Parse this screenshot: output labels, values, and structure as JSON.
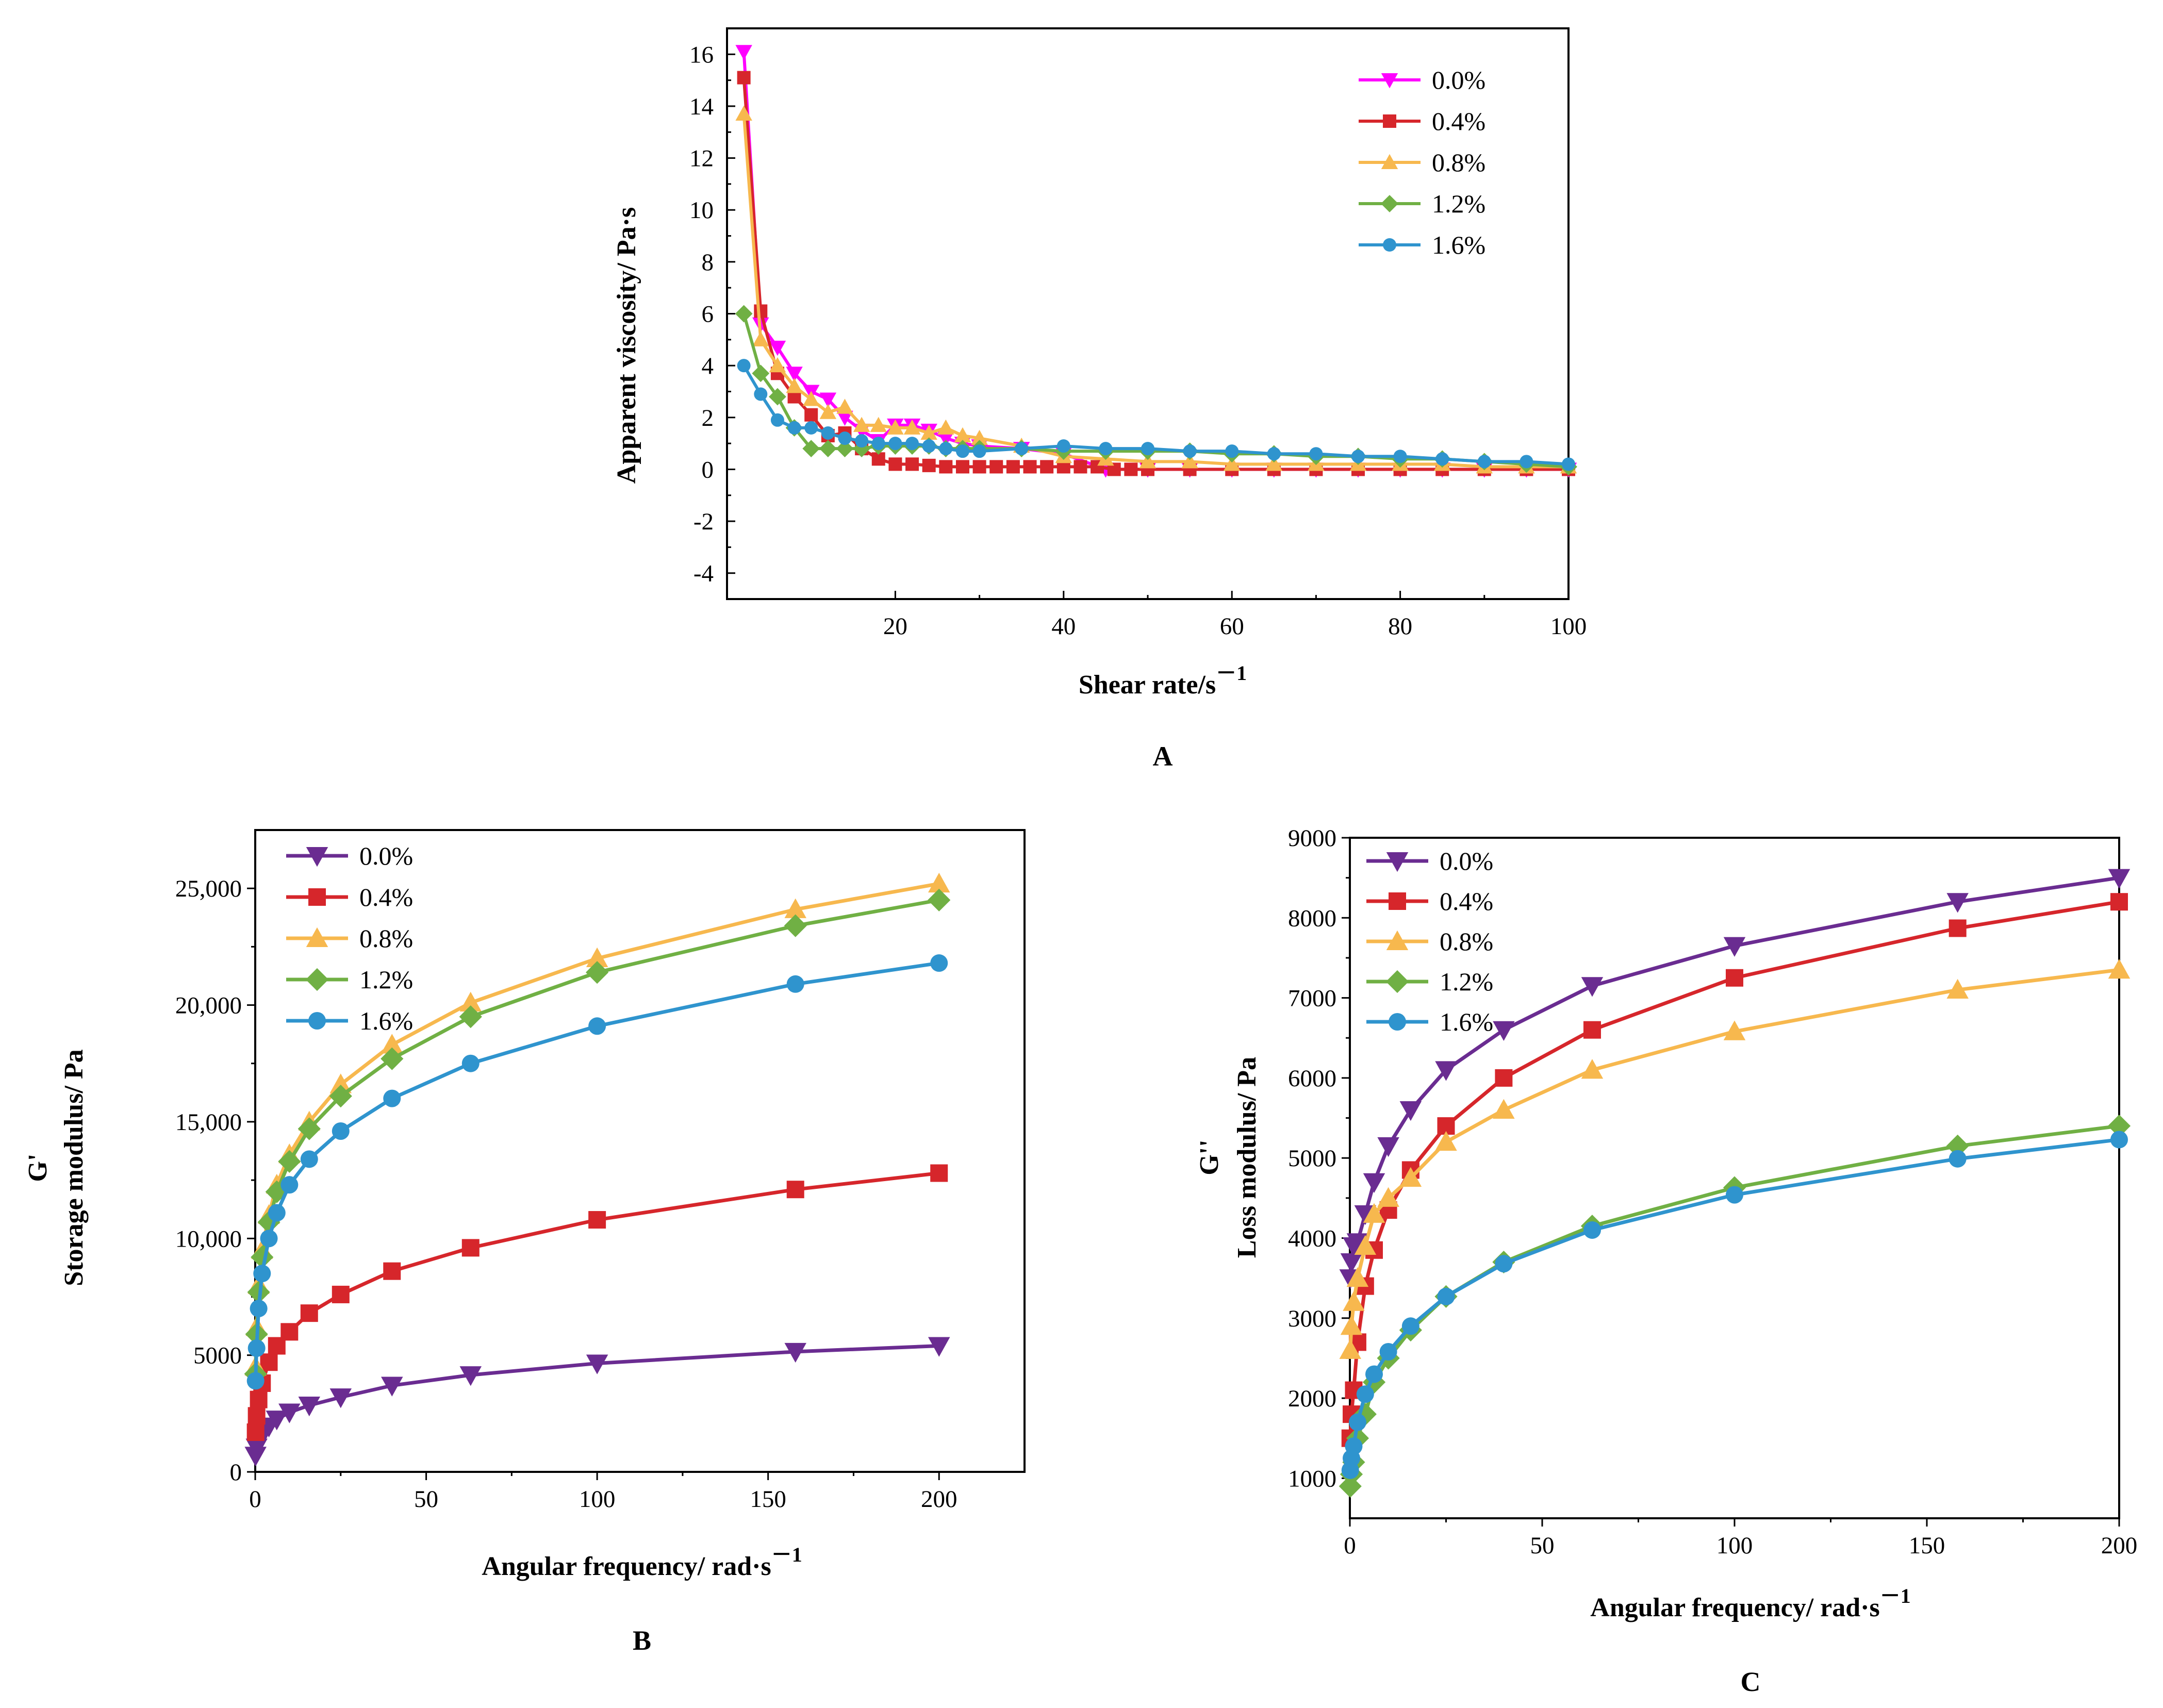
{
  "colors": {
    "chartA": [
      "#ff00ff",
      "#d6262b",
      "#f7b84e",
      "#70b044",
      "#2f94ce"
    ],
    "chartBC": [
      "#6a2c91",
      "#d6262b",
      "#f7b84e",
      "#70b044",
      "#2f94ce"
    ]
  },
  "chart_data": [
    {
      "type": "line",
      "panel_label": "A",
      "xlabel": "Shear rate/s",
      "xlabel_sup": "－1",
      "ylabel": "Apparent viscosity/ Pa·s",
      "xlim": [
        0,
        100
      ],
      "ylim": [
        -5,
        17
      ],
      "xticks": [
        20,
        40,
        60,
        80,
        100
      ],
      "yticks": [
        -4,
        -2,
        0,
        2,
        4,
        6,
        8,
        10,
        12,
        14,
        16
      ],
      "xtick_labels": [
        "20",
        "40",
        "60",
        "80",
        "100"
      ],
      "ytick_labels": [
        "-4",
        "-2",
        "0",
        "2",
        "4",
        "6",
        "8",
        "10",
        "12",
        "14",
        "16"
      ],
      "legend": [
        "0.0%",
        "0.4%",
        "0.8%",
        "1.2%",
        "1.6%"
      ],
      "legend_position": "top-right",
      "markers": [
        "triangle-down",
        "square",
        "triangle-up",
        "diamond",
        "circle"
      ],
      "series": [
        {
          "name": "0.0%",
          "x": [
            2,
            4,
            6,
            8,
            10,
            12,
            14,
            16,
            18,
            20,
            22,
            24,
            26,
            28,
            30,
            35,
            40,
            45,
            50,
            55,
            60,
            65,
            70,
            75,
            80,
            85,
            90,
            95,
            100
          ],
          "y": [
            16.1,
            5.6,
            4.7,
            3.7,
            3.0,
            2.7,
            2.0,
            1.5,
            1.1,
            1.7,
            1.7,
            1.5,
            1.2,
            1.0,
            0.9,
            0.8,
            0.6,
            0.0,
            0.0,
            0.0,
            0.0,
            0.0,
            0.0,
            0.0,
            0.0,
            0.0,
            0.0,
            0.0,
            0.0
          ]
        },
        {
          "name": "0.4%",
          "x": [
            2,
            4,
            6,
            8,
            10,
            12,
            14,
            16,
            18,
            20,
            22,
            24,
            26,
            28,
            30,
            32,
            34,
            36,
            38,
            40,
            42,
            44,
            46,
            48,
            50,
            55,
            60,
            65,
            70,
            75,
            80,
            85,
            90,
            95,
            100
          ],
          "y": [
            15.1,
            6.1,
            3.7,
            2.8,
            2.1,
            1.3,
            1.4,
            0.8,
            0.4,
            0.2,
            0.2,
            0.15,
            0.1,
            0.1,
            0.1,
            0.1,
            0.1,
            0.1,
            0.1,
            0.1,
            0.1,
            0.1,
            0.0,
            0.0,
            0.0,
            0.0,
            0.0,
            0.0,
            0.0,
            0.0,
            0.0,
            0.0,
            0.0,
            0.0,
            0.0
          ]
        },
        {
          "name": "0.8%",
          "x": [
            2,
            4,
            6,
            8,
            10,
            12,
            14,
            16,
            18,
            20,
            22,
            24,
            26,
            28,
            30,
            35,
            40,
            45,
            50,
            55,
            60,
            65,
            70,
            75,
            80,
            85,
            90,
            95,
            100
          ],
          "y": [
            13.7,
            5.0,
            4.0,
            3.2,
            2.7,
            2.2,
            2.4,
            1.7,
            1.7,
            1.6,
            1.6,
            1.4,
            1.6,
            1.3,
            1.2,
            0.9,
            0.5,
            0.4,
            0.3,
            0.3,
            0.2,
            0.2,
            0.2,
            0.2,
            0.2,
            0.2,
            0.1,
            0.1,
            0.1
          ]
        },
        {
          "name": "1.2%",
          "x": [
            2,
            4,
            6,
            8,
            10,
            12,
            14,
            16,
            18,
            20,
            22,
            24,
            26,
            28,
            30,
            35,
            40,
            45,
            50,
            55,
            60,
            65,
            70,
            75,
            80,
            85,
            90,
            95,
            100
          ],
          "y": [
            6.0,
            3.7,
            2.8,
            1.6,
            0.8,
            0.8,
            0.8,
            0.8,
            0.9,
            0.9,
            0.9,
            0.9,
            0.8,
            0.8,
            0.8,
            0.8,
            0.7,
            0.7,
            0.7,
            0.7,
            0.6,
            0.6,
            0.5,
            0.5,
            0.4,
            0.4,
            0.3,
            0.2,
            0.1
          ]
        },
        {
          "name": "1.6%",
          "x": [
            2,
            4,
            6,
            8,
            10,
            12,
            14,
            16,
            18,
            20,
            22,
            24,
            26,
            28,
            30,
            35,
            40,
            45,
            50,
            55,
            60,
            65,
            70,
            75,
            80,
            85,
            90,
            95,
            100
          ],
          "y": [
            4.0,
            2.9,
            1.9,
            1.6,
            1.6,
            1.4,
            1.2,
            1.1,
            1.0,
            1.0,
            1.0,
            0.9,
            0.8,
            0.7,
            0.7,
            0.8,
            0.9,
            0.8,
            0.8,
            0.7,
            0.7,
            0.6,
            0.6,
            0.5,
            0.5,
            0.4,
            0.3,
            0.3,
            0.2
          ]
        }
      ]
    },
    {
      "type": "line",
      "panel_label": "B",
      "xlabel": "Angular frequency/ rad·s",
      "xlabel_sup": "－1",
      "ylabel": "Storage modulus/ Pa",
      "ylabel_symbol": "G'",
      "xlim": [
        0,
        225
      ],
      "ylim": [
        0,
        27500
      ],
      "xticks": [
        0,
        50,
        100,
        150,
        200
      ],
      "yticks": [
        0,
        5000,
        10000,
        15000,
        20000,
        25000
      ],
      "xtick_labels": [
        "0",
        "50",
        "100",
        "150",
        "200"
      ],
      "ytick_labels": [
        "0",
        "5000",
        "10,000",
        "15,000",
        "20,000",
        "25,000"
      ],
      "legend": [
        "0.0%",
        "0.4%",
        "0.8%",
        "1.2%",
        "1.6%"
      ],
      "legend_position": "top-left",
      "markers": [
        "triangle-down",
        "square",
        "triangle-up",
        "diamond",
        "circle"
      ],
      "series": [
        {
          "name": "0.0%",
          "x": [
            0.1,
            0.4,
            1,
            2,
            4,
            6.3,
            10,
            15.8,
            25,
            40,
            63,
            100,
            158,
            200
          ],
          "y": [
            700,
            1050,
            1300,
            1650,
            1950,
            2250,
            2550,
            2850,
            3200,
            3700,
            4150,
            4650,
            5150,
            5400
          ]
        },
        {
          "name": "0.4%",
          "x": [
            0.1,
            0.4,
            1,
            2,
            4,
            6.3,
            10,
            15.8,
            25,
            40,
            63,
            100,
            158,
            200
          ],
          "y": [
            1700,
            2400,
            3100,
            3800,
            4700,
            5400,
            6000,
            6800,
            7600,
            8600,
            9600,
            10800,
            12100,
            12800
          ]
        },
        {
          "name": "0.8%",
          "x": [
            0.1,
            0.4,
            1,
            2,
            4,
            6.3,
            10,
            15.8,
            25,
            40,
            63,
            100,
            158,
            200
          ],
          "y": [
            4500,
            6200,
            8000,
            9500,
            11000,
            12300,
            13600,
            15000,
            16600,
            18300,
            20100,
            22000,
            24100,
            25200
          ]
        },
        {
          "name": "1.2%",
          "x": [
            0.1,
            0.4,
            1,
            2,
            4,
            6.3,
            10,
            15.8,
            25,
            40,
            63,
            100,
            158,
            200
          ],
          "y": [
            4200,
            5900,
            7700,
            9200,
            10700,
            12000,
            13300,
            14700,
            16100,
            17700,
            19500,
            21400,
            23400,
            24500
          ]
        },
        {
          "name": "1.6%",
          "x": [
            0.1,
            0.4,
            1,
            2,
            4,
            6.3,
            10,
            15.8,
            25,
            40,
            63,
            100,
            158,
            200
          ],
          "y": [
            3900,
            5300,
            7000,
            8500,
            10000,
            11100,
            12300,
            13400,
            14600,
            16000,
            17500,
            19100,
            20900,
            21800
          ]
        }
      ]
    },
    {
      "type": "line",
      "panel_label": "C",
      "xlabel": "Angular frequency/ rad·s",
      "xlabel_sup": "－1",
      "ylabel": "Loss modulus/ Pa",
      "ylabel_symbol": "G''",
      "xlim": [
        0,
        200
      ],
      "ylim": [
        500,
        9000
      ],
      "xticks": [
        0,
        50,
        100,
        150,
        200
      ],
      "yticks": [
        1000,
        2000,
        3000,
        4000,
        5000,
        6000,
        7000,
        8000,
        9000
      ],
      "xtick_labels": [
        "0",
        "50",
        "100",
        "150",
        "200"
      ],
      "ytick_labels": [
        "1000",
        "2000",
        "3000",
        "4000",
        "5000",
        "6000",
        "7000",
        "8000",
        "9000"
      ],
      "legend": [
        "0.0%",
        "0.4%",
        "0.8%",
        "1.2%",
        "1.6%"
      ],
      "legend_position": "top-left",
      "markers": [
        "triangle-down",
        "square",
        "triangle-up",
        "diamond",
        "circle"
      ],
      "series": [
        {
          "name": "0.0%",
          "x": [
            0.1,
            0.4,
            1,
            2,
            4,
            6.3,
            10,
            15.8,
            25,
            40,
            63,
            100,
            158,
            200
          ],
          "y": [
            3500,
            3700,
            3900,
            3950,
            4300,
            4700,
            5150,
            5600,
            6100,
            6600,
            7150,
            7650,
            8200,
            8500
          ]
        },
        {
          "name": "0.4%",
          "x": [
            0.1,
            0.4,
            1,
            2,
            4,
            6.3,
            10,
            15.8,
            25,
            40,
            63,
            100,
            158,
            200
          ],
          "y": [
            1500,
            1800,
            2100,
            2700,
            3400,
            3850,
            4350,
            4850,
            5400,
            6000,
            6600,
            7250,
            7870,
            8200
          ]
        },
        {
          "name": "0.8%",
          "x": [
            0.1,
            0.4,
            1,
            2,
            4,
            6.3,
            10,
            15.8,
            25,
            40,
            63,
            100,
            158,
            200
          ],
          "y": [
            2600,
            2900,
            3200,
            3500,
            3900,
            4300,
            4500,
            4750,
            5200,
            5600,
            6100,
            6580,
            7100,
            7350
          ]
        },
        {
          "name": "1.2%",
          "x": [
            0.1,
            0.4,
            1,
            2,
            4,
            6.3,
            10,
            15.8,
            25,
            40,
            63,
            100,
            158,
            200
          ],
          "y": [
            900,
            1050,
            1200,
            1500,
            1800,
            2200,
            2500,
            2850,
            3270,
            3700,
            4150,
            4630,
            5150,
            5400
          ]
        },
        {
          "name": "1.6%",
          "x": [
            0.1,
            0.4,
            1,
            2,
            4,
            6.3,
            10,
            15.8,
            25,
            40,
            63,
            100,
            158,
            200
          ],
          "y": [
            1100,
            1250,
            1400,
            1700,
            2050,
            2300,
            2580,
            2900,
            3270,
            3680,
            4100,
            4540,
            4990,
            5230
          ]
        }
      ]
    }
  ]
}
